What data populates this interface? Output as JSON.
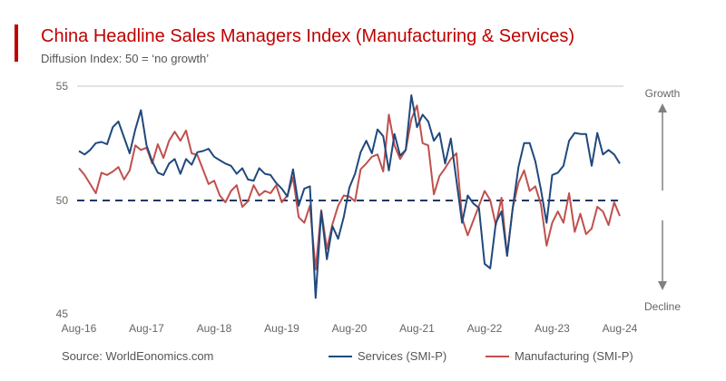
{
  "header": {
    "title": "China Headline Sales Managers Index (Manufacturing & Services)",
    "subtitle": "Diffusion Index: 50 = ‘no growth’"
  },
  "footer": {
    "source": "Source: WorldEonomics.com"
  },
  "colors": {
    "title": "#c00000",
    "services": "#1f497d",
    "manufacturing": "#c0504d",
    "reference_line": "#1f3864"
  },
  "chart_data": {
    "type": "line",
    "title": "China Headline Sales Managers Index (Manufacturing & Services)",
    "subtitle": "Diffusion Index: 50 = ‘no growth’",
    "x_start": "Aug-16",
    "x_end": "Aug-24",
    "frequency": "monthly",
    "x_tick_labels": [
      "Aug-16",
      "Aug-17",
      "Aug-18",
      "Aug-19",
      "Aug-20",
      "Aug-21",
      "Aug-22",
      "Aug-23",
      "Aug-24"
    ],
    "y_tick_labels": [
      "55",
      "50",
      "45"
    ],
    "ylim": [
      45,
      55
    ],
    "reference_line": {
      "value": 50,
      "style": "dashed"
    },
    "annotations": {
      "up": "Growth",
      "down": "Decline"
    },
    "legend_position": "bottom-right",
    "grid": "top line only",
    "series": [
      {
        "name": "Services (SMI-P)",
        "color": "#1f497d",
        "values": [
          52.15,
          52.0,
          52.2,
          52.5,
          52.55,
          52.45,
          53.2,
          53.45,
          52.75,
          52.05,
          53.1,
          53.95,
          52.4,
          51.7,
          51.2,
          51.1,
          51.6,
          51.8,
          51.15,
          51.8,
          51.55,
          52.1,
          52.15,
          52.25,
          51.9,
          51.75,
          51.6,
          51.5,
          51.15,
          51.4,
          50.9,
          50.85,
          51.4,
          51.15,
          51.1,
          50.75,
          50.5,
          50.15,
          51.35,
          49.75,
          50.5,
          50.6,
          45.7,
          49.5,
          47.4,
          48.85,
          48.3,
          49.25,
          50.55,
          51.15,
          52.1,
          52.6,
          52.05,
          53.1,
          52.8,
          51.3,
          52.9,
          51.95,
          52.2,
          54.6,
          53.2,
          53.75,
          53.45,
          52.6,
          52.95,
          51.6,
          52.7,
          50.85,
          49.0,
          50.2,
          49.85,
          49.65,
          47.2,
          47.0,
          49.0,
          49.5,
          47.55,
          49.65,
          51.45,
          52.5,
          52.5,
          51.7,
          50.45,
          49.0,
          51.1,
          51.2,
          51.5,
          52.6,
          52.95,
          52.9,
          52.9,
          51.5,
          52.95,
          52.0,
          52.2,
          52.0,
          51.6
        ]
      },
      {
        "name": "Manufacturing (SMI-P)",
        "color": "#c0504d",
        "values": [
          51.4,
          51.1,
          50.7,
          50.3,
          51.2,
          51.1,
          51.25,
          51.45,
          50.9,
          51.3,
          52.4,
          52.2,
          52.3,
          51.6,
          52.45,
          51.85,
          52.6,
          53.0,
          52.6,
          53.05,
          52.05,
          51.98,
          51.35,
          50.7,
          50.85,
          50.2,
          49.9,
          50.4,
          50.65,
          49.7,
          49.95,
          50.65,
          50.2,
          50.4,
          50.3,
          50.65,
          49.9,
          50.2,
          51.0,
          49.25,
          49.0,
          49.75,
          46.95,
          49.55,
          47.85,
          48.95,
          49.75,
          50.2,
          50.15,
          49.95,
          51.35,
          51.6,
          51.9,
          52.0,
          51.25,
          53.75,
          52.4,
          51.8,
          52.2,
          53.55,
          54.15,
          52.5,
          52.4,
          50.25,
          51.05,
          51.4,
          51.8,
          52.05,
          49.2,
          48.45,
          49.1,
          49.75,
          50.4,
          50.0,
          48.9,
          50.1,
          47.55,
          49.65,
          50.75,
          51.3,
          50.4,
          50.6,
          49.8,
          48.0,
          49.0,
          49.5,
          49.0,
          50.3,
          48.6,
          49.4,
          48.5,
          48.75,
          49.7,
          49.5,
          48.9,
          49.9,
          49.3
        ]
      }
    ]
  }
}
